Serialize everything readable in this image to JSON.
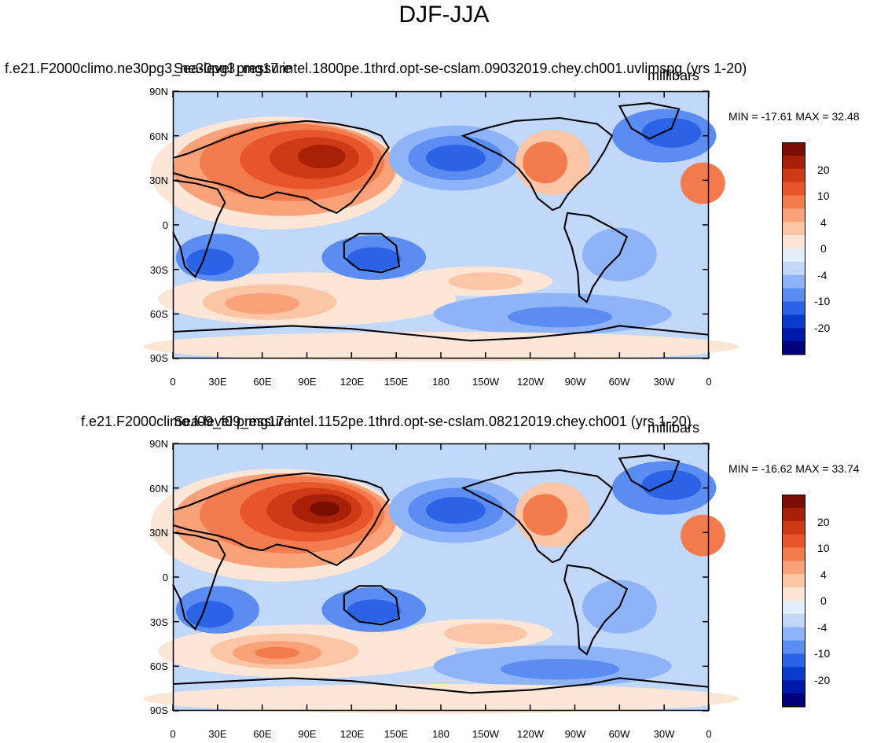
{
  "figure": {
    "title": "DJF-JJA",
    "palette": [
      "#00007a",
      "#0018a8",
      "#0a3ccc",
      "#2b62e6",
      "#5a8cf2",
      "#8fb3f8",
      "#c2d8fb",
      "#e2edfd",
      "#fde6d6",
      "#fcc6a6",
      "#f9a279",
      "#f47b4e",
      "#e8552b",
      "#cf3a16",
      "#a82008",
      "#7a0e02"
    ],
    "land_color": "#000000"
  },
  "panels": [
    {
      "title_a": "f.e21.F2000climo.ne30pg3_ne30pg3_mg17.intel.1800pe.1thrd.opt-se-cslam.09032019.chey.ch001.uvlimspg (yrs 1-20)",
      "title_b": "Sea-level pressure",
      "units": "millibars",
      "min_max": "MIN = -17.61 MAX =  32.48",
      "min": -17.61,
      "max": 32.48
    },
    {
      "title_a": "f.e21.F2000climo.f09_f09_mg17.intel.1152pe.1thrd.opt-se-cslam.08212019.chey.ch001 (yrs 1-20)",
      "title_b": "Sea-level pressure",
      "units": "millibars",
      "min_max": "MIN = -16.62 MAX =  33.74",
      "min": -16.62,
      "max": 33.74
    }
  ],
  "axes": {
    "lat_ticks": [
      "90N",
      "60N",
      "30N",
      "0",
      "30S",
      "60S",
      "90S"
    ],
    "lon_ticks": [
      "0",
      "30E",
      "60E",
      "90E",
      "120E",
      "150E",
      "180",
      "150W",
      "120W",
      "90W",
      "60W",
      "30W",
      "0"
    ]
  },
  "colorbar": {
    "labels": [
      "20",
      "10",
      "4",
      "0",
      "-4",
      "-10",
      "-20"
    ]
  }
}
